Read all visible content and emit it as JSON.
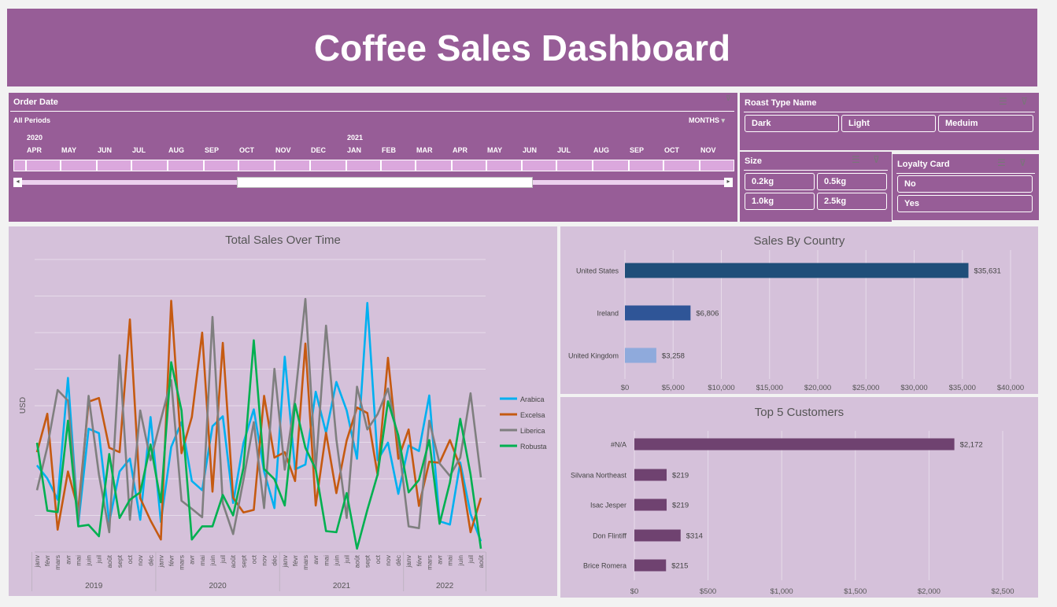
{
  "title": "Coffee Sales Dashboard",
  "timeline": {
    "header": "Order Date",
    "period": "All Periods",
    "level": "MONTHS",
    "years": [
      {
        "label": "2020"
      },
      {
        "label": "2021"
      }
    ],
    "months": [
      "APR",
      "MAY",
      "JUN",
      "JUL",
      "AUG",
      "SEP",
      "OCT",
      "NOV",
      "DEC",
      "JAN",
      "FEB",
      "MAR",
      "APR",
      "MAY",
      "JUN",
      "JUL",
      "AUG",
      "SEP",
      "OCT",
      "NOV"
    ]
  },
  "slicers": {
    "roast": {
      "header": "Roast Type Name",
      "items": [
        "Dark",
        "Light",
        "Meduim"
      ]
    },
    "size": {
      "header": "Size",
      "items": [
        "0.2kg",
        "0.5kg",
        "1.0kg",
        "2.5kg"
      ]
    },
    "loyalty": {
      "header": "Loyalty Card",
      "items": [
        "No",
        "Yes"
      ]
    }
  },
  "colors": {
    "header": "#975d97",
    "chart_bg": "#d5c1da",
    "arabica": "#00b0f0",
    "excelsa": "#c55a11",
    "liberica": "#7f7f7f",
    "robusta": "#00b050",
    "us": "#1f4e79",
    "ireland": "#2f5597",
    "uk": "#8faadc",
    "customer": "#6f4270"
  },
  "icons": [
    "multi-select-icon",
    "clear-filter-icon"
  ],
  "chart_data": [
    {
      "type": "line",
      "title": "Total Sales Over Time",
      "ylabel": "USD",
      "xlabel": "",
      "ylim": [
        0,
        8
      ],
      "grid": true,
      "legend": "right",
      "years": [
        "2019",
        "2020",
        "2021",
        "2022"
      ],
      "x": [
        "janv",
        "févr",
        "mars",
        "avr",
        "mai",
        "juin",
        "juil",
        "août",
        "sept",
        "oct",
        "nov",
        "déc",
        "janv",
        "févr",
        "mars",
        "avr",
        "mai",
        "juin",
        "juil",
        "août",
        "sept",
        "oct",
        "nov",
        "déc",
        "janv",
        "févr",
        "mars",
        "avr",
        "mai",
        "juin",
        "juil",
        "août",
        "sept",
        "oct",
        "nov",
        "déc",
        "janv",
        "févr",
        "mars",
        "avr",
        "mai",
        "juin",
        "juil",
        "août"
      ],
      "series": [
        {
          "name": "Arabica",
          "values": [
            2.37,
            2.01,
            1.43,
            4.76,
            0.75,
            3.37,
            3.25,
            0.82,
            2.2,
            2.55,
            0.88,
            3.69,
            0.82,
            2.87,
            3.55,
            1.94,
            1.69,
            3.44,
            3.71,
            1.34,
            2.98,
            3.9,
            2.2,
            1.2,
            5.34,
            2.26,
            2.39,
            4.38,
            3.26,
            4.65,
            3.87,
            2.55,
            6.81,
            2.51,
            2.99,
            1.59,
            2.91,
            2.76,
            4.28,
            0.84,
            0.75,
            2.45,
            1.04,
            0.29
          ]
        },
        {
          "name": "Excelsa",
          "values": [
            2.73,
            3.78,
            0.61,
            2.2,
            1.15,
            4.11,
            4.21,
            2.85,
            2.73,
            6.36,
            1.47,
            0.86,
            0.34,
            6.87,
            2.7,
            3.69,
            6.0,
            1.65,
            5.72,
            1.48,
            1.08,
            1.15,
            4.27,
            2.58,
            2.73,
            1.94,
            5.7,
            1.27,
            3.26,
            1.61,
            3.05,
            3.95,
            3.8,
            2.1,
            5.31,
            2.55,
            3.35,
            1.26,
            2.47,
            2.44,
            3.06,
            2.33,
            0.54,
            1.48
          ]
        },
        {
          "name": "Liberica",
          "values": [
            1.69,
            2.87,
            4.43,
            4.14,
            0.86,
            4.27,
            2.12,
            0.54,
            5.38,
            0.88,
            3.87,
            2.51,
            3.62,
            4.7,
            1.4,
            1.18,
            0.95,
            6.43,
            1.33,
            0.49,
            1.97,
            3.55,
            1.2,
            5.01,
            2.25,
            4.2,
            6.92,
            2.26,
            6.19,
            3.08,
            0.93,
            4.52,
            3.35,
            3.77,
            4.47,
            3.05,
            0.7,
            0.65,
            3.59,
            2.42,
            2.08,
            2.58,
            4.34,
            2.04
          ]
        },
        {
          "name": "Robusta",
          "values": [
            2.99,
            1.13,
            1.09,
            3.59,
            0.7,
            0.74,
            0.43,
            2.68,
            0.93,
            1.43,
            1.63,
            2.94,
            1.36,
            5.19,
            3.87,
            0.34,
            0.7,
            0.7,
            1.56,
            1.0,
            2.3,
            5.79,
            2.27,
            1.99,
            1.27,
            4.05,
            2.85,
            2.26,
            0.57,
            0.54,
            1.61,
            0.09,
            1.15,
            2.12,
            4.12,
            3.19,
            1.63,
            1.97,
            3.06,
            0.77,
            1.9,
            3.64,
            2.12,
            0.09
          ]
        }
      ]
    },
    {
      "type": "bar",
      "orientation": "horizontal",
      "title": "Sales By Country",
      "xlim": [
        0,
        40000
      ],
      "grid": true,
      "ticks": [
        "$0",
        "$5,000",
        "$10,000",
        "$15,000",
        "$20,000",
        "$25,000",
        "$30,000",
        "$35,000",
        "$40,000"
      ],
      "categories": [
        "United States",
        "Ireland",
        "United Kingdom"
      ],
      "values": [
        35631,
        6806,
        3258
      ],
      "labels": [
        "$35,631",
        "$6,806",
        "$3,258"
      ]
    },
    {
      "type": "bar",
      "orientation": "horizontal",
      "title": "Top 5 Customers",
      "xlim": [
        0,
        2500
      ],
      "grid": true,
      "ticks": [
        "$0",
        "$500",
        "$1,000",
        "$1,500",
        "$2,000",
        "$2,500"
      ],
      "categories": [
        "#N/A",
        "Silvana Northeast",
        "Isac Jesper",
        "Don Flintiff",
        "Brice Romera"
      ],
      "values": [
        2172,
        219,
        219,
        314,
        215
      ],
      "labels": [
        "$2,172",
        "$219",
        "$219",
        "$314",
        "$215"
      ]
    }
  ]
}
